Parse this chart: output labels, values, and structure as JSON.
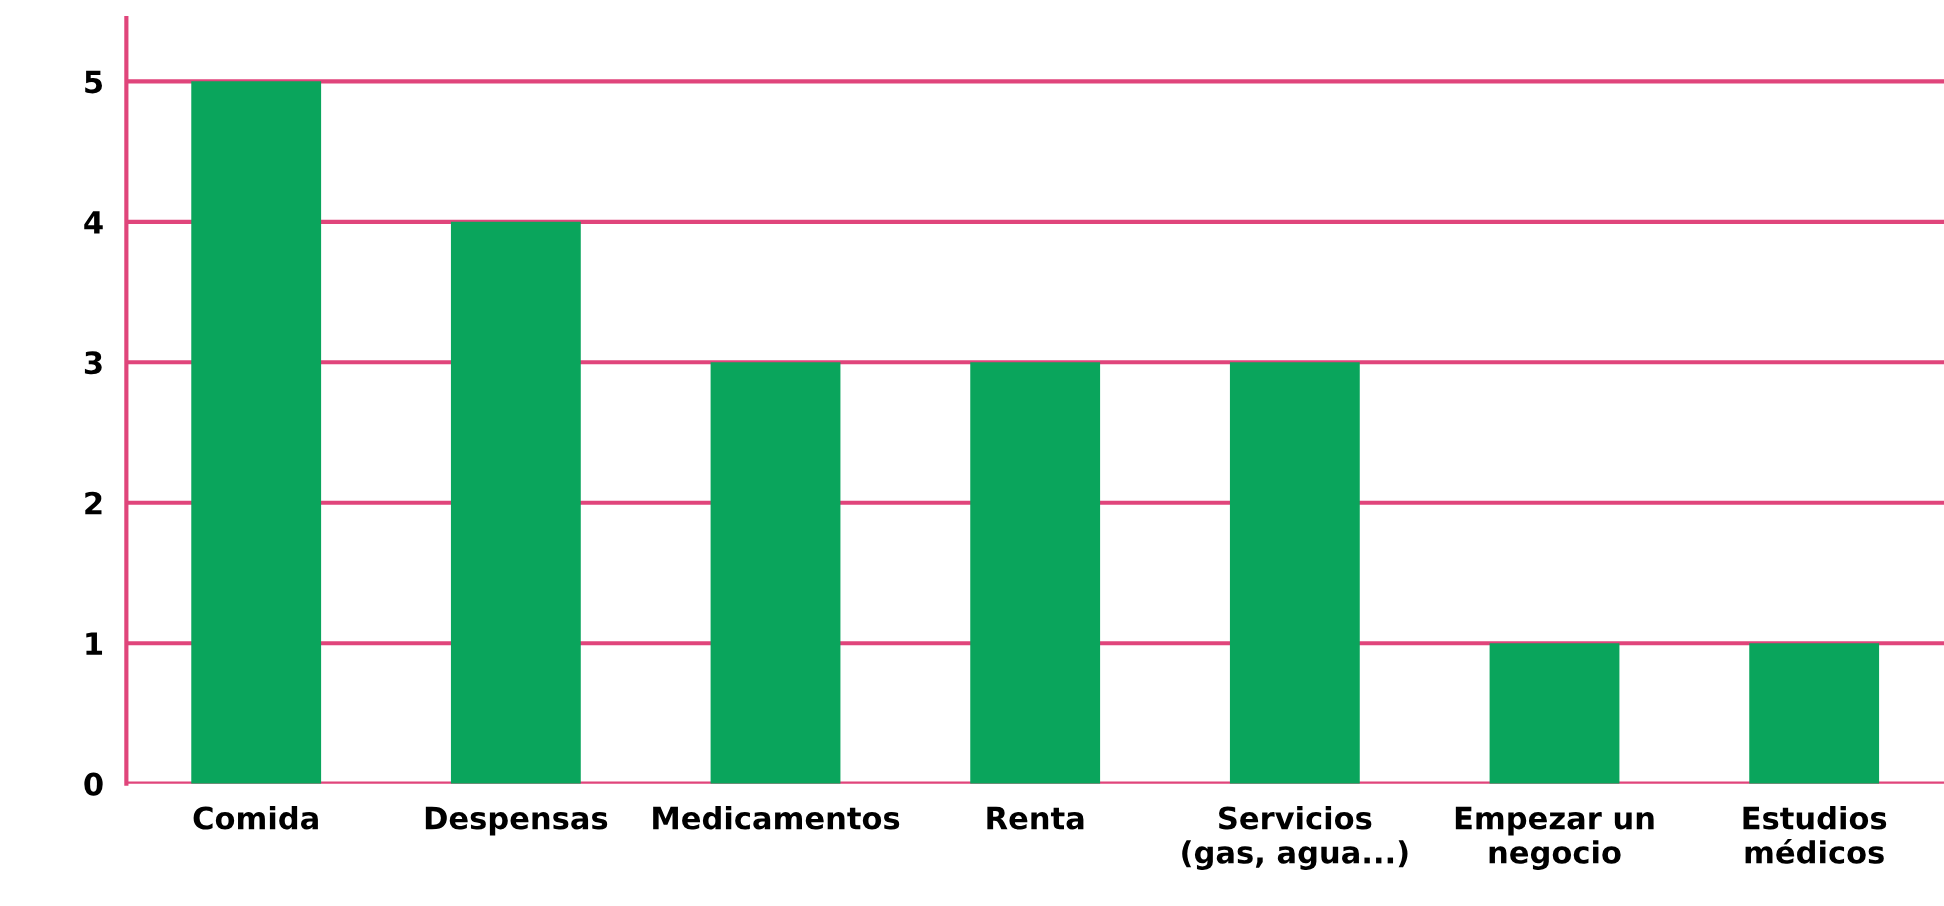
{
  "chart_data": {
    "type": "bar",
    "categories": [
      "Comida",
      "Despensas",
      "Medicamentos",
      "Renta",
      "Servicios\n(gas, agua...)",
      "Empezar un\nnegocio",
      "Estudios\nmédicos"
    ],
    "values": [
      5,
      4,
      3,
      3,
      3,
      1,
      1
    ],
    "color": "#0aa55c",
    "ylim": [
      0,
      5.45
    ],
    "yticks": [
      0,
      1,
      2,
      3,
      4,
      5
    ],
    "grid": "y"
  }
}
